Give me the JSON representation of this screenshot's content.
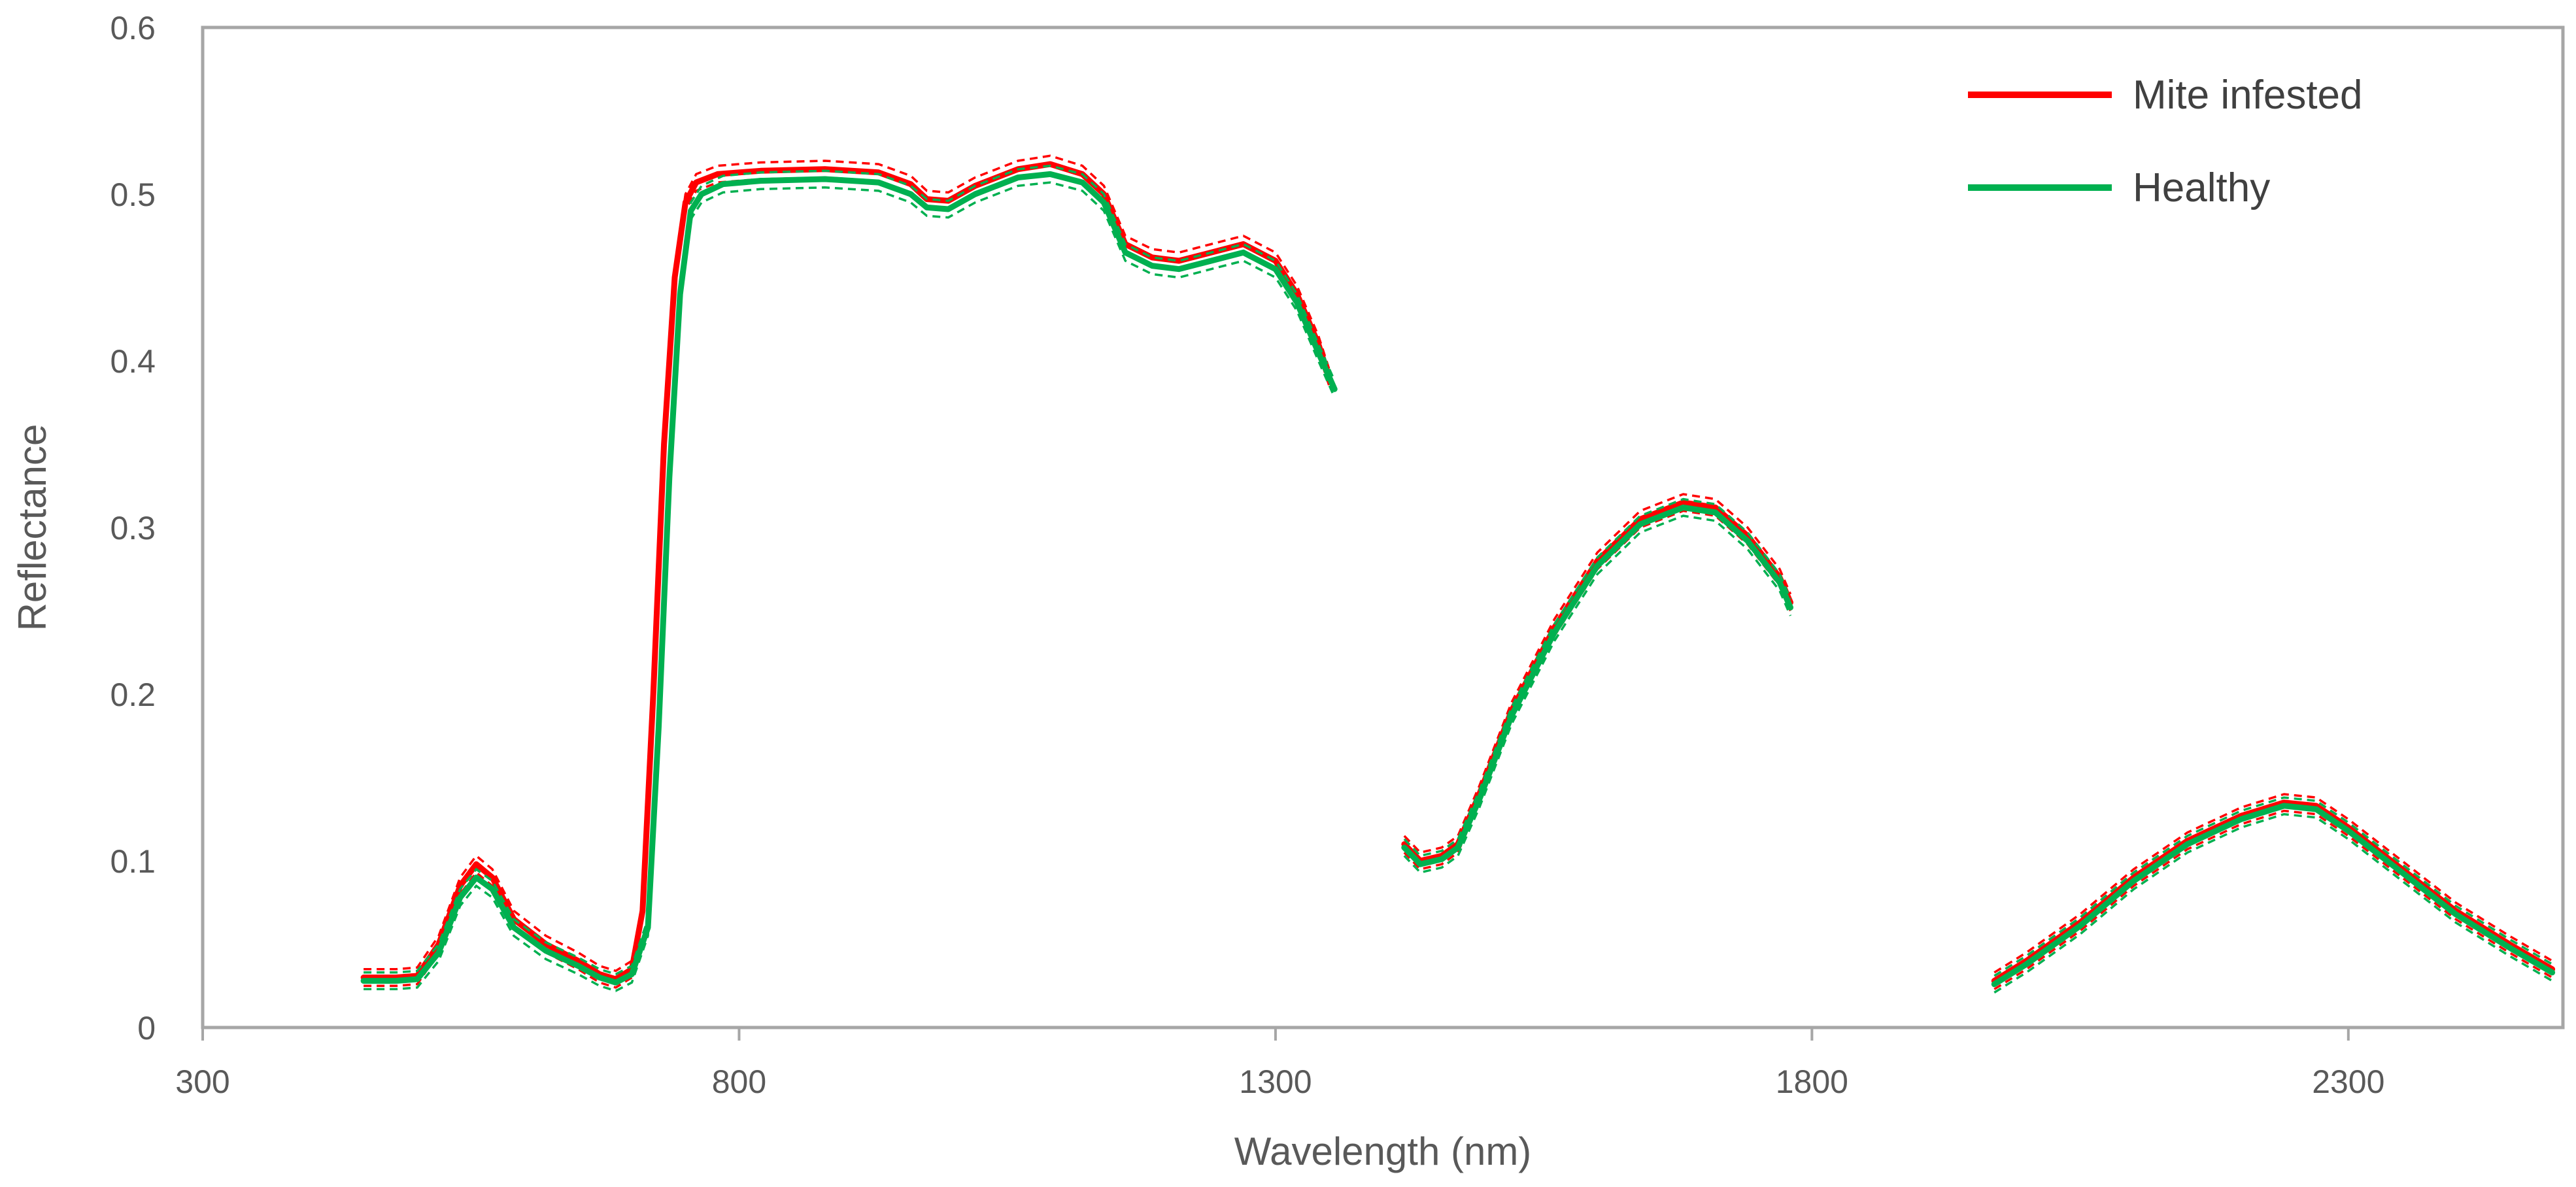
{
  "chart_data": {
    "type": "line",
    "title": "",
    "xlabel": "Wavelength (nm)",
    "ylabel": "Reflectance",
    "xlim": [
      300,
      2500
    ],
    "ylim": [
      0,
      0.6
    ],
    "x_ticks": [
      300,
      800,
      1300,
      1800,
      2300
    ],
    "y_ticks": [
      0,
      0.1,
      0.2,
      0.3,
      0.4,
      0.5,
      0.6
    ],
    "y_tick_labels": [
      "0",
      "0.1",
      "0.2",
      "0.3",
      "0.4",
      "0.5",
      "0.6"
    ],
    "grid": false,
    "legend_position": "top-right",
    "series": [
      {
        "name": "Mite infested",
        "color": "#FF0000",
        "segments": [
          [
            [
              450,
              0.03
            ],
            [
              480,
              0.03
            ],
            [
              500,
              0.031
            ],
            [
              520,
              0.05
            ],
            [
              540,
              0.085
            ],
            [
              555,
              0.098
            ],
            [
              570,
              0.09
            ],
            [
              590,
              0.065
            ],
            [
              620,
              0.05
            ],
            [
              650,
              0.04
            ],
            [
              670,
              0.032
            ],
            [
              685,
              0.029
            ],
            [
              700,
              0.035
            ],
            [
              710,
              0.07
            ],
            [
              720,
              0.2
            ],
            [
              730,
              0.35
            ],
            [
              740,
              0.45
            ],
            [
              750,
              0.495
            ],
            [
              760,
              0.507
            ],
            [
              780,
              0.512
            ],
            [
              820,
              0.514
            ],
            [
              880,
              0.515
            ],
            [
              930,
              0.513
            ],
            [
              960,
              0.506
            ],
            [
              975,
              0.497
            ],
            [
              995,
              0.496
            ],
            [
              1020,
              0.505
            ],
            [
              1060,
              0.515
            ],
            [
              1090,
              0.518
            ],
            [
              1120,
              0.512
            ],
            [
              1140,
              0.5
            ],
            [
              1160,
              0.47
            ],
            [
              1185,
              0.462
            ],
            [
              1210,
              0.46
            ],
            [
              1240,
              0.465
            ],
            [
              1270,
              0.47
            ],
            [
              1300,
              0.46
            ],
            [
              1320,
              0.44
            ],
            [
              1340,
              0.41
            ],
            [
              1350,
              0.39
            ]
          ],
          [
            [
              1420,
              0.11
            ],
            [
              1435,
              0.1
            ],
            [
              1455,
              0.103
            ],
            [
              1470,
              0.11
            ],
            [
              1490,
              0.14
            ],
            [
              1520,
              0.19
            ],
            [
              1560,
              0.24
            ],
            [
              1600,
              0.28
            ],
            [
              1640,
              0.305
            ],
            [
              1680,
              0.315
            ],
            [
              1710,
              0.312
            ],
            [
              1740,
              0.295
            ],
            [
              1770,
              0.27
            ],
            [
              1780,
              0.255
            ]
          ],
          [
            [
              1970,
              0.028
            ],
            [
              2000,
              0.04
            ],
            [
              2050,
              0.063
            ],
            [
              2100,
              0.09
            ],
            [
              2150,
              0.112
            ],
            [
              2200,
              0.127
            ],
            [
              2240,
              0.135
            ],
            [
              2270,
              0.133
            ],
            [
              2300,
              0.12
            ],
            [
              2350,
              0.095
            ],
            [
              2400,
              0.07
            ],
            [
              2450,
              0.05
            ],
            [
              2490,
              0.035
            ]
          ]
        ]
      },
      {
        "name": "Healthy",
        "color": "#00B050",
        "segments": [
          [
            [
              450,
              0.028
            ],
            [
              480,
              0.028
            ],
            [
              500,
              0.029
            ],
            [
              520,
              0.045
            ],
            [
              540,
              0.078
            ],
            [
              555,
              0.09
            ],
            [
              570,
              0.083
            ],
            [
              590,
              0.06
            ],
            [
              620,
              0.046
            ],
            [
              650,
              0.037
            ],
            [
              670,
              0.03
            ],
            [
              685,
              0.027
            ],
            [
              700,
              0.032
            ],
            [
              715,
              0.06
            ],
            [
              725,
              0.18
            ],
            [
              735,
              0.33
            ],
            [
              745,
              0.44
            ],
            [
              755,
              0.49
            ],
            [
              765,
              0.5
            ],
            [
              785,
              0.506
            ],
            [
              820,
              0.508
            ],
            [
              880,
              0.509
            ],
            [
              930,
              0.507
            ],
            [
              960,
              0.5
            ],
            [
              975,
              0.492
            ],
            [
              995,
              0.491
            ],
            [
              1020,
              0.5
            ],
            [
              1060,
              0.51
            ],
            [
              1090,
              0.512
            ],
            [
              1120,
              0.507
            ],
            [
              1140,
              0.495
            ],
            [
              1160,
              0.465
            ],
            [
              1185,
              0.457
            ],
            [
              1210,
              0.455
            ],
            [
              1240,
              0.46
            ],
            [
              1270,
              0.465
            ],
            [
              1300,
              0.455
            ],
            [
              1320,
              0.435
            ],
            [
              1340,
              0.405
            ],
            [
              1355,
              0.383
            ]
          ],
          [
            [
              1420,
              0.108
            ],
            [
              1435,
              0.098
            ],
            [
              1455,
              0.101
            ],
            [
              1470,
              0.108
            ],
            [
              1490,
              0.137
            ],
            [
              1520,
              0.187
            ],
            [
              1560,
              0.237
            ],
            [
              1600,
              0.277
            ],
            [
              1640,
              0.302
            ],
            [
              1680,
              0.312
            ],
            [
              1710,
              0.309
            ],
            [
              1740,
              0.292
            ],
            [
              1770,
              0.267
            ],
            [
              1780,
              0.252
            ]
          ],
          [
            [
              1970,
              0.026
            ],
            [
              2000,
              0.038
            ],
            [
              2050,
              0.061
            ],
            [
              2100,
              0.088
            ],
            [
              2150,
              0.11
            ],
            [
              2200,
              0.125
            ],
            [
              2240,
              0.133
            ],
            [
              2270,
              0.131
            ],
            [
              2300,
              0.118
            ],
            [
              2350,
              0.093
            ],
            [
              2400,
              0.068
            ],
            [
              2450,
              0.048
            ],
            [
              2490,
              0.033
            ]
          ]
        ]
      }
    ]
  }
}
